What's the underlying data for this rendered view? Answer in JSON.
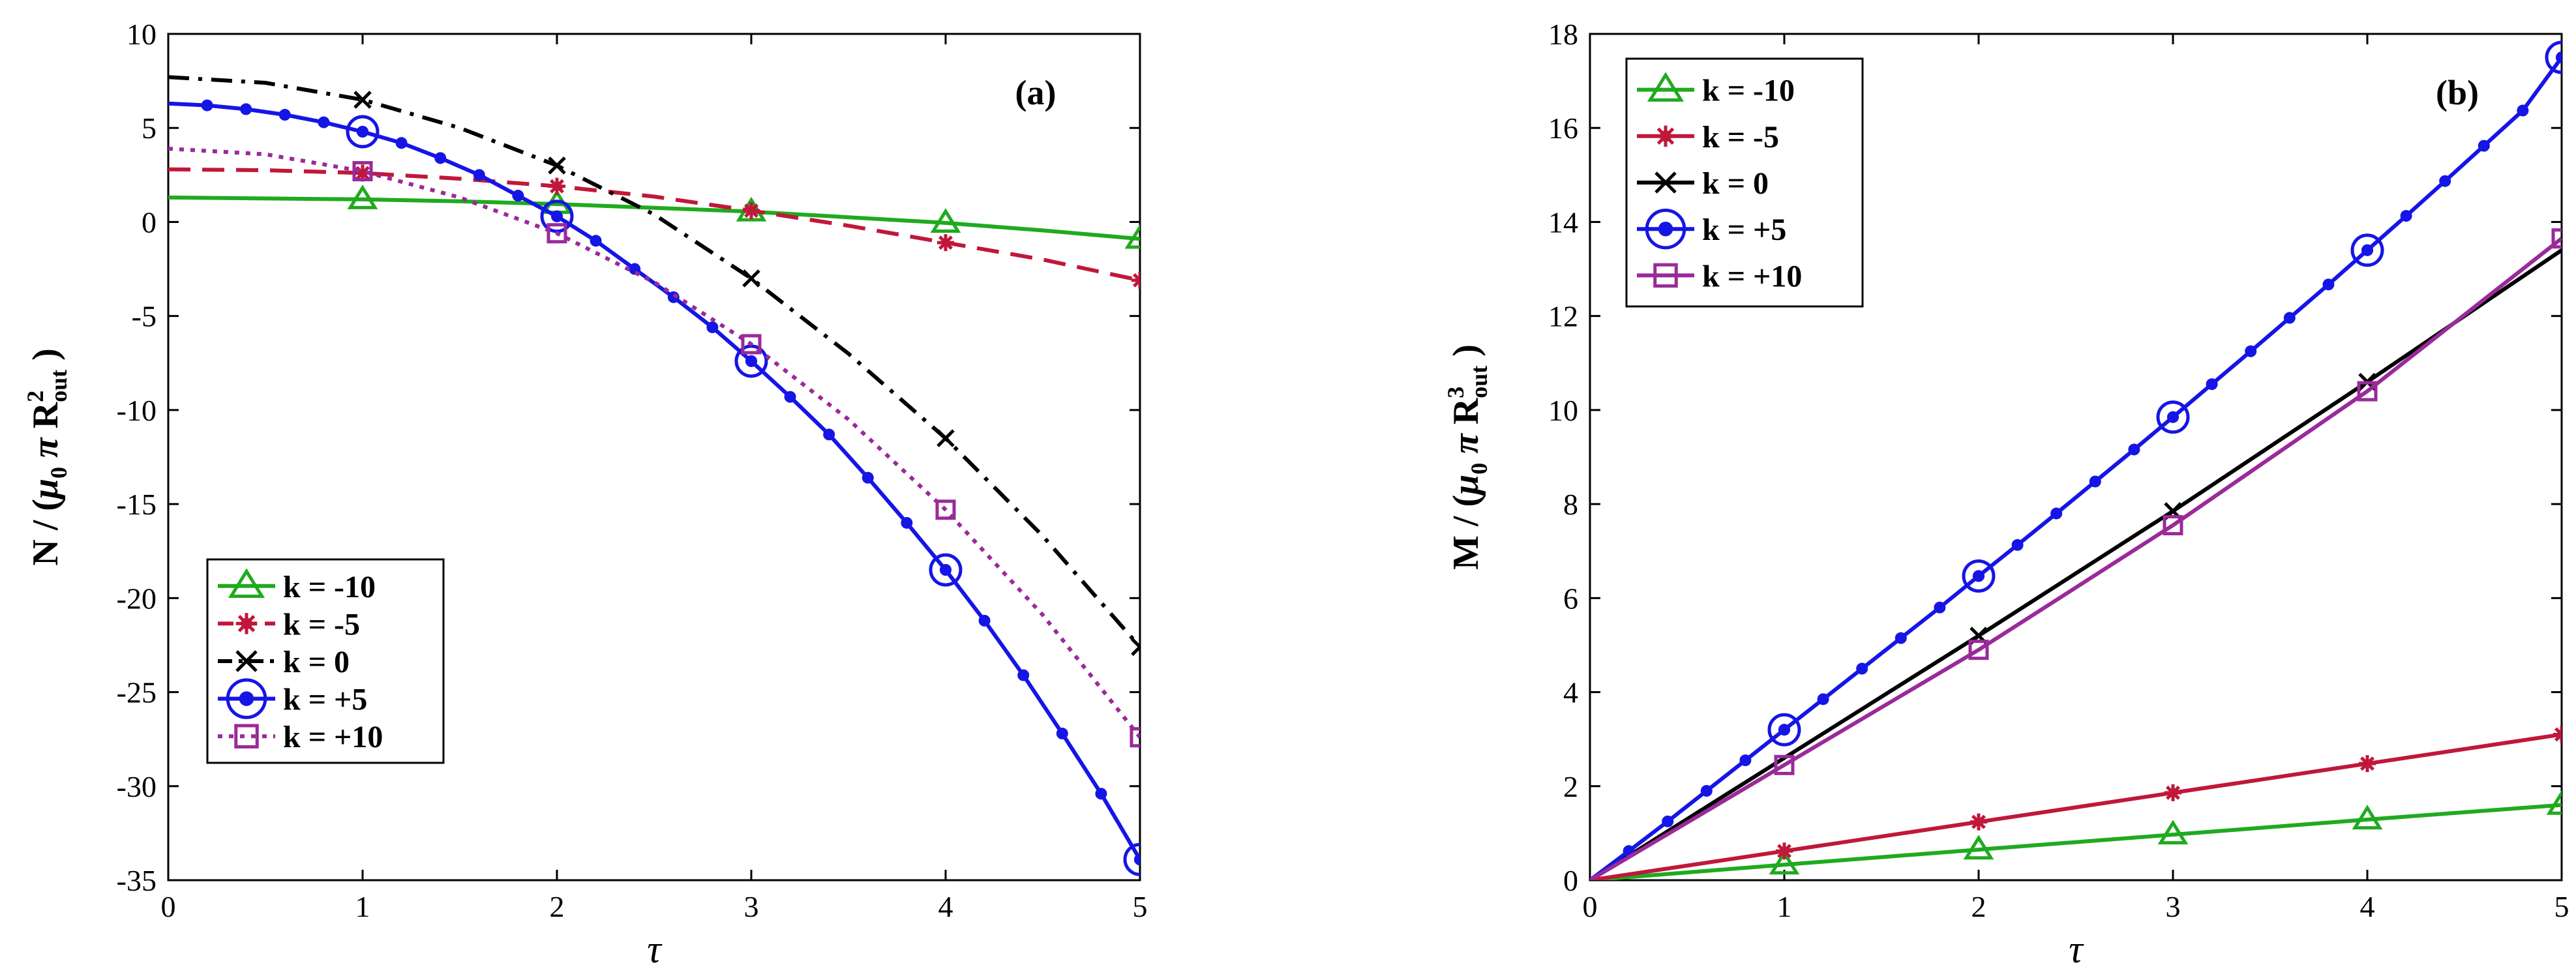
{
  "chart_data": [
    {
      "type": "line",
      "panel_label": "(a)",
      "ylabel": "N / (μ0 π R²out )",
      "ylabel_parts": {
        "pre": "N / (",
        "mu": "μ",
        "mu_sub": "0",
        "pi": "π",
        "R": "R",
        "R_sup": "2",
        "R_sub": "out",
        "post": ")"
      },
      "xlabel": "τ",
      "xlim": [
        0,
        5
      ],
      "ylim": [
        -35,
        10
      ],
      "xticks": [
        "0",
        "1",
        "2",
        "3",
        "4",
        "5"
      ],
      "yticks": [
        "10",
        "5",
        "0",
        "-5",
        "-10",
        "-15",
        "-20",
        "-25",
        "-30",
        "-35"
      ],
      "legend_position": "bottom-left",
      "series": [
        {
          "name": "k = -10",
          "color": "#1faa1f",
          "style": "solid",
          "marker": "triangle",
          "x": [
            0,
            0.5,
            1,
            1.5,
            2,
            2.5,
            3,
            3.5,
            4,
            4.5,
            5
          ],
          "y": [
            1.3,
            1.25,
            1.2,
            1.1,
            0.95,
            0.75,
            0.55,
            0.25,
            -0.05,
            -0.45,
            -0.9
          ],
          "marker_x": [
            1,
            2,
            3,
            4,
            5
          ]
        },
        {
          "name": "k = -5",
          "color": "#c0183a",
          "style": "dashed",
          "marker": "star",
          "x": [
            0,
            0.5,
            1,
            1.5,
            2,
            2.5,
            3,
            3.5,
            4,
            4.5,
            5
          ],
          "y": [
            2.8,
            2.75,
            2.6,
            2.3,
            1.9,
            1.35,
            0.6,
            -0.2,
            -1.1,
            -2.0,
            -3.1
          ],
          "marker_x": [
            1,
            2,
            3,
            4,
            5
          ]
        },
        {
          "name": "k =  0",
          "color": "#000000",
          "style": "dashdot",
          "marker": "x",
          "x": [
            0,
            0.5,
            1,
            1.5,
            2,
            2.5,
            3,
            3.5,
            4,
            4.5,
            5
          ],
          "y": [
            7.7,
            7.4,
            6.5,
            5.0,
            3.0,
            0.4,
            -3.0,
            -7.0,
            -11.5,
            -16.7,
            -22.6
          ],
          "marker_x": [
            1,
            2,
            3,
            4,
            5
          ]
        },
        {
          "name": "k = +5",
          "color": "#1515e6",
          "style": "solid",
          "marker": "circle-dot",
          "x": [
            0,
            0.2,
            0.4,
            0.6,
            0.8,
            1,
            1.2,
            1.4,
            1.6,
            1.8,
            2,
            2.2,
            2.4,
            2.6,
            2.8,
            3,
            3.2,
            3.4,
            3.6,
            3.8,
            4,
            4.2,
            4.4,
            4.6,
            4.8,
            5
          ],
          "y": [
            6.3,
            6.2,
            6.0,
            5.7,
            5.3,
            4.8,
            4.2,
            3.4,
            2.5,
            1.4,
            0.3,
            -1.0,
            -2.5,
            -4.0,
            -5.6,
            -7.4,
            -9.3,
            -11.3,
            -13.6,
            -16.0,
            -18.5,
            -21.2,
            -24.1,
            -27.2,
            -30.4,
            -33.9
          ],
          "marker_x": [
            1,
            2,
            3,
            4,
            5
          ]
        },
        {
          "name": "k = +10",
          "color": "#9a2a9a",
          "style": "dotted",
          "marker": "square",
          "x": [
            0,
            0.5,
            1,
            1.5,
            2,
            2.5,
            3,
            3.5,
            4,
            4.5,
            5
          ],
          "y": [
            3.9,
            3.6,
            2.7,
            1.3,
            -0.6,
            -3.2,
            -6.5,
            -10.5,
            -15.3,
            -20.9,
            -27.4
          ],
          "marker_x": [
            1,
            2,
            3,
            4,
            5
          ]
        }
      ]
    },
    {
      "type": "line",
      "panel_label": "(b)",
      "ylabel": "M / (μ0 π R³out )",
      "ylabel_parts": {
        "pre": "M / (",
        "mu": "μ",
        "mu_sub": "0",
        "pi": "π",
        "R": "R",
        "R_sup": "3",
        "R_sub": "out",
        "post": ")"
      },
      "xlabel": "τ",
      "xlim": [
        0,
        5
      ],
      "ylim": [
        0,
        18
      ],
      "xticks": [
        "0",
        "1",
        "2",
        "3",
        "4",
        "5"
      ],
      "yticks": [
        "0",
        "2",
        "4",
        "6",
        "8",
        "10",
        "12",
        "14",
        "16",
        "18"
      ],
      "legend_position": "top-left",
      "series": [
        {
          "name": "k = -10",
          "color": "#1faa1f",
          "style": "solid",
          "marker": "triangle",
          "x": [
            0,
            1,
            2,
            3,
            4,
            5
          ],
          "y": [
            0,
            0.33,
            0.65,
            0.97,
            1.29,
            1.6
          ],
          "marker_x": [
            1,
            2,
            3,
            4,
            5
          ]
        },
        {
          "name": "k = -5",
          "color": "#c0183a",
          "style": "solid",
          "marker": "star",
          "x": [
            0,
            1,
            2,
            3,
            4,
            5
          ],
          "y": [
            0,
            0.62,
            1.24,
            1.86,
            2.48,
            3.1
          ],
          "marker_x": [
            1,
            2,
            3,
            4,
            5
          ]
        },
        {
          "name": "k =  0",
          "color": "#000000",
          "style": "solid",
          "marker": "x",
          "x": [
            0,
            1,
            2,
            3,
            4,
            5
          ],
          "y": [
            0,
            2.6,
            5.2,
            7.85,
            10.6,
            13.4
          ],
          "marker_x": [
            2,
            3,
            4
          ]
        },
        {
          "name": "k = +5",
          "color": "#1515e6",
          "style": "solid",
          "marker": "circle-dot",
          "x": [
            0,
            0.2,
            0.4,
            0.6,
            0.8,
            1,
            1.2,
            1.4,
            1.6,
            1.8,
            2,
            2.2,
            2.4,
            2.6,
            2.8,
            3,
            3.2,
            3.4,
            3.6,
            3.8,
            4,
            4.2,
            4.4,
            4.6,
            4.8,
            5
          ],
          "y": [
            0,
            0.62,
            1.25,
            1.9,
            2.55,
            3.2,
            3.85,
            4.5,
            5.15,
            5.8,
            6.47,
            7.13,
            7.8,
            8.48,
            9.16,
            9.85,
            10.55,
            11.25,
            11.96,
            12.67,
            13.4,
            14.13,
            14.87,
            15.62,
            16.37,
            17.5
          ],
          "marker_x": [
            1,
            2,
            3,
            4,
            5
          ]
        },
        {
          "name": "k = +10",
          "color": "#9a2a9a",
          "style": "solid",
          "marker": "square",
          "x": [
            0,
            1,
            2,
            3,
            4,
            5
          ],
          "y": [
            0,
            2.45,
            4.9,
            7.55,
            10.4,
            13.65
          ],
          "marker_x": [
            1,
            2,
            3,
            4,
            5
          ]
        }
      ]
    }
  ]
}
